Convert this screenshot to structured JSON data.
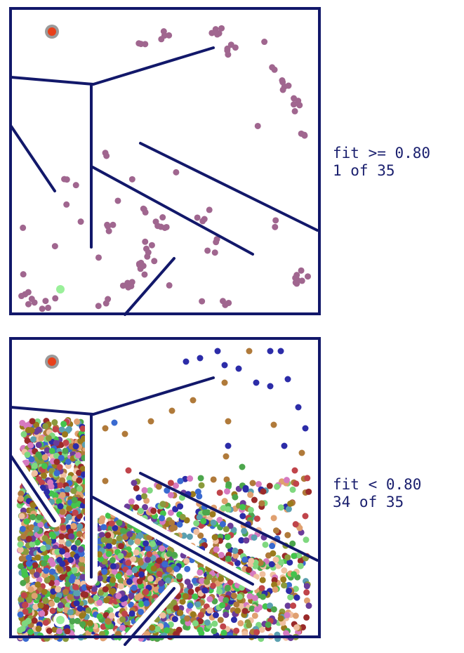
{
  "panels": [
    {
      "fit_label": "fit >= 0.80",
      "count_label": "1 of 35",
      "dot_density": "sparse",
      "dot_palette": [
        "#a0668f"
      ]
    },
    {
      "fit_label": "fit < 0.80",
      "count_label": "34 of 35",
      "dot_density": "dense",
      "dot_palette": [
        "#2c2ca8",
        "#b07a3a",
        "#8a9a3c",
        "#4ca64c",
        "#7fd87f",
        "#6a3c9a",
        "#c0444a",
        "#3a6ad0",
        "#e0a070",
        "#9a2a2a",
        "#5aa0b0",
        "#d67ac0",
        "#9a7a1c",
        "#44c44c",
        "#f0c0a0"
      ]
    }
  ],
  "colors": {
    "wall": "#12186a",
    "start_marker": "#e8401a",
    "start_ring": "#9a9a9a",
    "goal_marker": "#9af09a"
  }
}
